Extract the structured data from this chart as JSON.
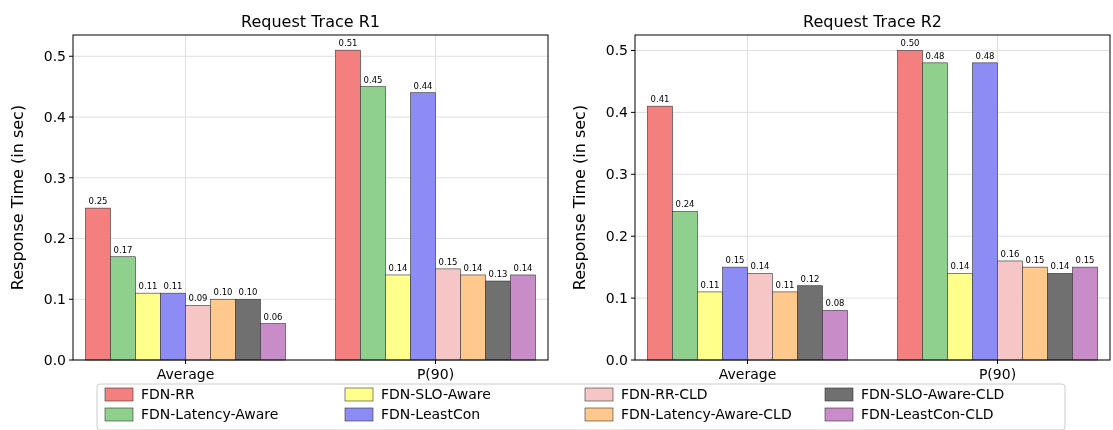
{
  "chart_data": [
    {
      "type": "bar",
      "title": "Request Trace  R1",
      "ylabel": "Response Time (in sec)",
      "categories": [
        "Average",
        "P(90)"
      ],
      "ylim": [
        0,
        0.535
      ],
      "yticks": [
        {
          "value": 0,
          "label": "0.0"
        },
        0.1,
        0.2,
        0.3,
        0.4,
        0.5
      ],
      "grid": true,
      "legend": "bottom",
      "series": [
        {
          "name": "FDN-RR",
          "color": "#f47f7f",
          "values": [
            0.25,
            0.51
          ],
          "value_labels": [
            "0.25",
            "0.51"
          ]
        },
        {
          "name": "FDN-Latency-Aware",
          "color": "#8fd08f",
          "values": [
            0.17,
            0.45
          ],
          "value_labels": [
            "0.17",
            "0.45"
          ]
        },
        {
          "name": "FDN-SLO-Aware",
          "color": "#ffff8c",
          "values": [
            0.11,
            0.14
          ],
          "value_labels": [
            "0.11",
            "0.14"
          ]
        },
        {
          "name": "FDN-LeastCon",
          "color": "#8c8cf4",
          "values": [
            0.11,
            0.44
          ],
          "value_labels": [
            "0.11",
            "0.44"
          ]
        },
        {
          "name": "FDN-RR-CLD",
          "color": "#f6c6c6",
          "values": [
            0.09,
            0.15
          ],
          "value_labels": [
            "0.09",
            "0.15"
          ]
        },
        {
          "name": "FDN-Latency-Aware-CLD",
          "color": "#ffc88c",
          "values": [
            0.1,
            0.14
          ],
          "value_labels": [
            "0.10",
            "0.14"
          ]
        },
        {
          "name": "FDN-SLO-Aware-CLD",
          "color": "#707070",
          "values": [
            0.1,
            0.13
          ],
          "value_labels": [
            "0.10",
            "0.13"
          ]
        },
        {
          "name": "FDN-LeastCon-CLD",
          "color": "#c88cc8",
          "values": [
            0.06,
            0.14
          ],
          "value_labels": [
            "0.06",
            "0.14"
          ]
        }
      ]
    },
    {
      "type": "bar",
      "title": "Request Trace  R2",
      "ylabel": "Response Time (in sec)",
      "categories": [
        "Average",
        "P(90)"
      ],
      "ylim": [
        0,
        0.525
      ],
      "yticks": [
        {
          "value": 0,
          "label": "0.0"
        },
        0.1,
        0.2,
        0.3,
        0.4,
        0.5
      ],
      "grid": true,
      "series": [
        {
          "color": "#f47f7f",
          "values": [
            0.41,
            0.5
          ],
          "value_labels": [
            "0.41",
            "0.50"
          ]
        },
        {
          "color": "#8fd08f",
          "values": [
            0.24,
            0.48
          ],
          "value_labels": [
            "0.24",
            "0.48"
          ]
        },
        {
          "color": "#ffff8c",
          "values": [
            0.11,
            0.14
          ],
          "value_labels": [
            "0.11",
            "0.14"
          ]
        },
        {
          "color": "#8c8cf4",
          "values": [
            0.15,
            0.48
          ],
          "value_labels": [
            "0.15",
            "0.48"
          ]
        },
        {
          "color": "#f6c6c6",
          "values": [
            0.14,
            0.16
          ],
          "value_labels": [
            "0.14",
            "0.16"
          ]
        },
        {
          "color": "#ffc88c",
          "values": [
            0.11,
            0.15
          ],
          "value_labels": [
            "0.11",
            "0.15"
          ]
        },
        {
          "color": "#707070",
          "values": [
            0.12,
            0.14
          ],
          "value_labels": [
            "0.12",
            "0.14"
          ]
        },
        {
          "color": "#c88cc8",
          "values": [
            0.08,
            0.15
          ],
          "value_labels": [
            "0.08",
            "0.15"
          ]
        }
      ]
    }
  ]
}
